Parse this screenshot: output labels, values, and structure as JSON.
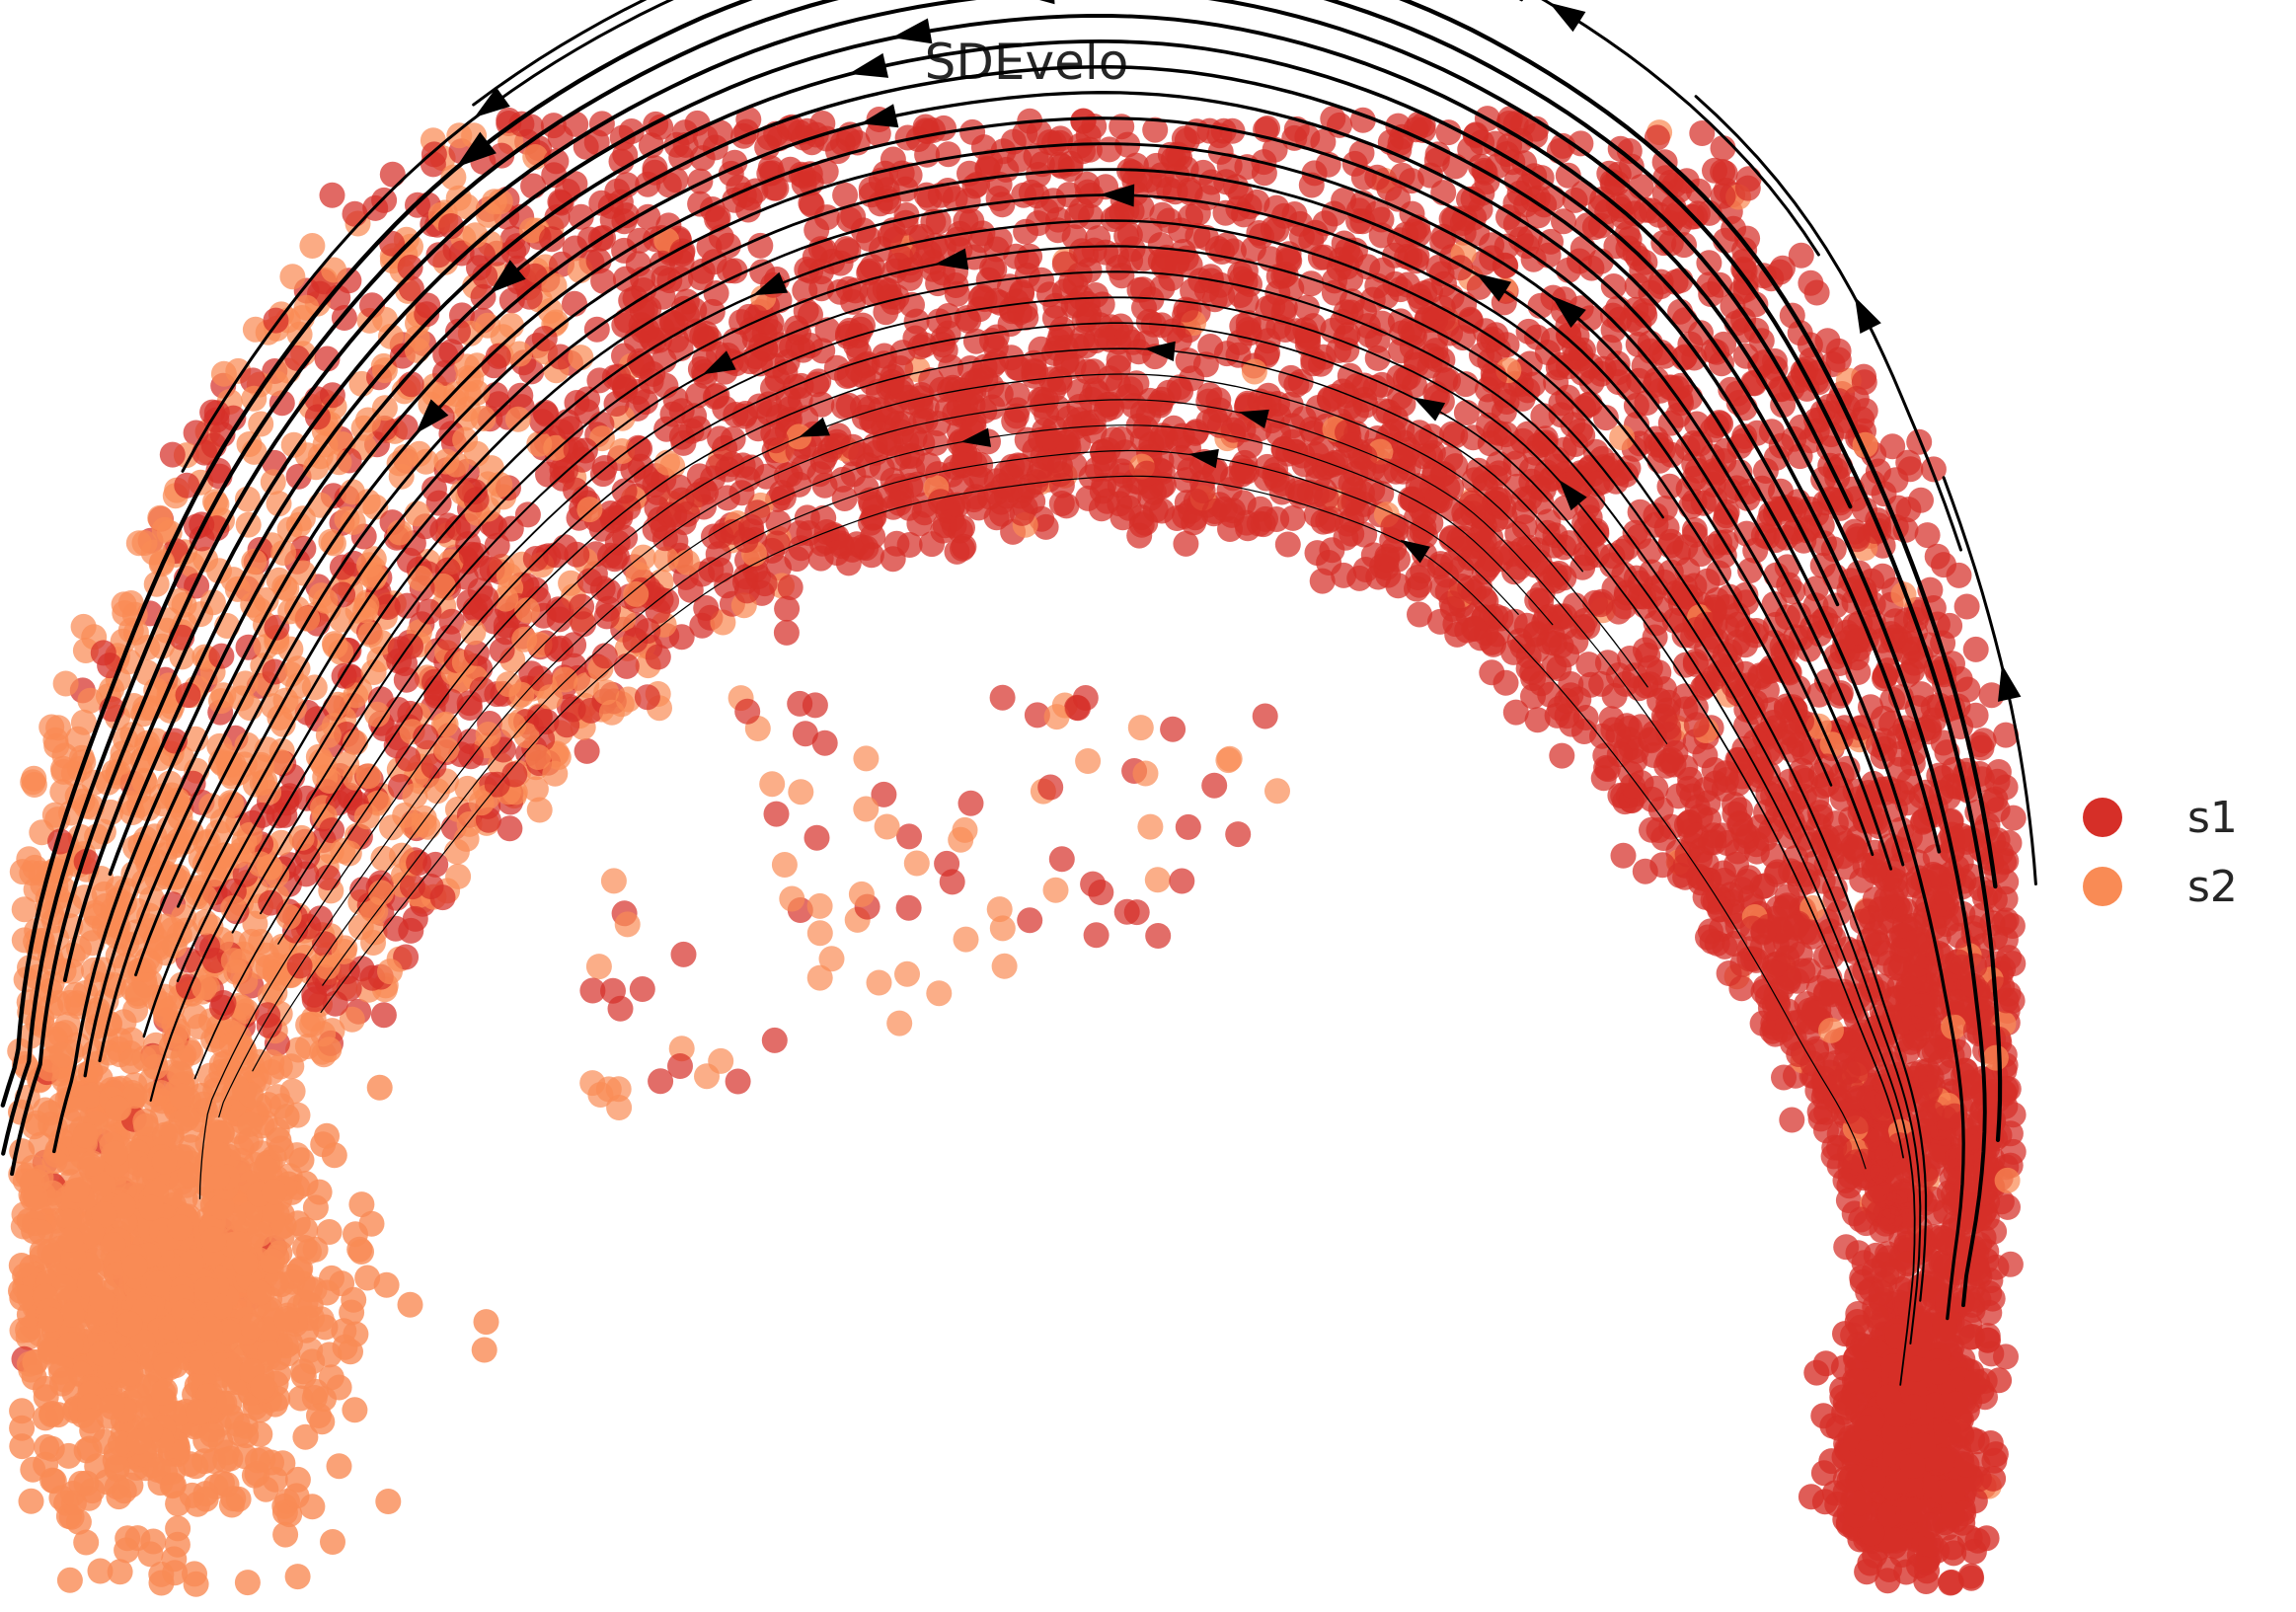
{
  "chart_data": {
    "type": "scatter",
    "title": "SDEvelo",
    "xlabel": "",
    "ylabel": "",
    "axes_visible": false,
    "grid": false,
    "legend_placement": "right",
    "overlay": "streamlines",
    "series": [
      {
        "name": "s1",
        "color": "#d62f28"
      },
      {
        "name": "s2",
        "color": "#f98b55"
      }
    ],
    "stream_color": "#000000"
  }
}
